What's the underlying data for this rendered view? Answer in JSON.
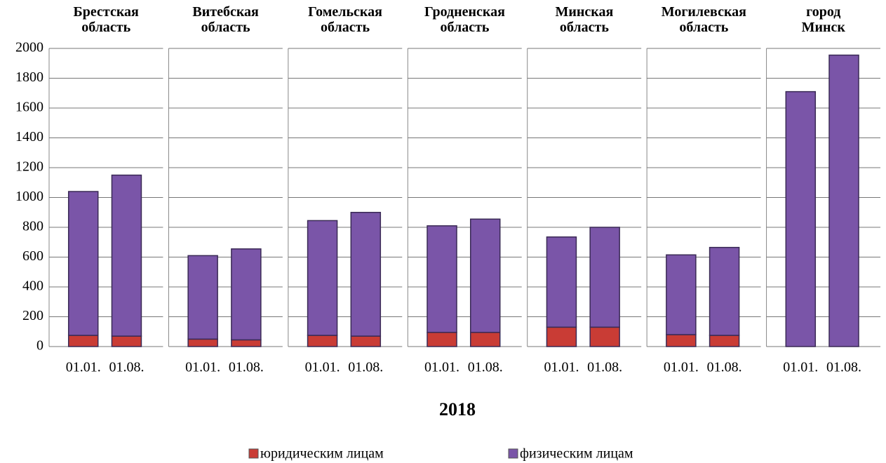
{
  "chart_data": {
    "type": "bar",
    "stacked": true,
    "xlabel": "2018",
    "groups": [
      "Брестская\nобласть",
      "Витебская\nобласть",
      "Гомельская\nобласть",
      "Гродненская\nобласть",
      "Минская\nобласть",
      "Могилевская\nобласть",
      "город\nМинск"
    ],
    "categories": [
      "01.01.",
      "01.08.",
      "01.01.",
      "01.08.",
      "01.01.",
      "01.08.",
      "01.01.",
      "01.08.",
      "01.01.",
      "01.08.",
      "01.01.",
      "01.08.",
      "01.01.",
      "01.08."
    ],
    "series": [
      {
        "name": "юридическим лицам",
        "color": "#c93c35",
        "values": [
          75,
          70,
          50,
          45,
          75,
          70,
          95,
          95,
          130,
          130,
          80,
          75,
          0,
          0
        ]
      },
      {
        "name": "физическим лицам",
        "color": "#7a55a8",
        "values": [
          965,
          1080,
          560,
          610,
          770,
          830,
          715,
          760,
          605,
          670,
          535,
          590,
          1710,
          1955
        ]
      }
    ],
    "ylim": [
      0,
      2000
    ],
    "yticks": [
      0,
      200,
      400,
      600,
      800,
      1000,
      1200,
      1400,
      1600,
      1800,
      2000
    ],
    "grid": true
  }
}
